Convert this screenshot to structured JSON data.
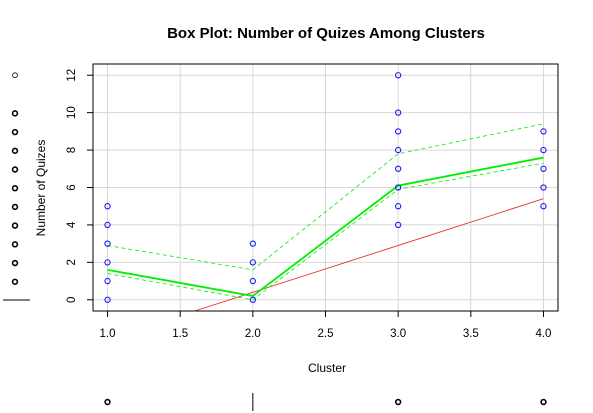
{
  "chart_data": {
    "type": "scatter",
    "title": "Box Plot: Number of Quizes Among Clusters",
    "xlabel": "Cluster",
    "ylabel": "Number of Quizes",
    "xlim": [
      0.9,
      4.1
    ],
    "ylim": [
      -0.6,
      12.6
    ],
    "xticks": [
      "1.0",
      "1.5",
      "2.0",
      "2.5",
      "3.0",
      "3.5",
      "4.0"
    ],
    "yticks": [
      "0",
      "2",
      "4",
      "6",
      "8",
      "10",
      "12"
    ],
    "grid": true,
    "points": [
      {
        "x": 1,
        "y": 0
      },
      {
        "x": 1,
        "y": 1
      },
      {
        "x": 1,
        "y": 2
      },
      {
        "x": 1,
        "y": 3
      },
      {
        "x": 1,
        "y": 4
      },
      {
        "x": 1,
        "y": 5
      },
      {
        "x": 2,
        "y": 0
      },
      {
        "x": 2,
        "y": 1
      },
      {
        "x": 2,
        "y": 2
      },
      {
        "x": 2,
        "y": 3
      },
      {
        "x": 3,
        "y": 4
      },
      {
        "x": 3,
        "y": 5
      },
      {
        "x": 3,
        "y": 6
      },
      {
        "x": 3,
        "y": 7
      },
      {
        "x": 3,
        "y": 8
      },
      {
        "x": 3,
        "y": 9
      },
      {
        "x": 3,
        "y": 10
      },
      {
        "x": 3,
        "y": 12
      },
      {
        "x": 4,
        "y": 5
      },
      {
        "x": 4,
        "y": 6
      },
      {
        "x": 4,
        "y": 7
      },
      {
        "x": 4,
        "y": 8
      },
      {
        "x": 4,
        "y": 9
      }
    ],
    "series": [
      {
        "values": [
          [
            1,
            1.6
          ],
          [
            2,
            0.2
          ],
          [
            3,
            6.1
          ],
          [
            4,
            7.6
          ]
        ],
        "color": "#00ee00",
        "style": "solid",
        "width": 1.8
      },
      {
        "values": [
          [
            1,
            2.9
          ],
          [
            2,
            1.6
          ],
          [
            3,
            7.8
          ],
          [
            4,
            9.4
          ]
        ],
        "color": "#00ee00",
        "style": "dashed",
        "width": 0.8
      },
      {
        "values": [
          [
            1,
            1.4
          ],
          [
            2,
            0.0
          ],
          [
            3,
            5.9
          ],
          [
            4,
            7.3
          ]
        ],
        "color": "#00ee00",
        "style": "dashed",
        "width": 0.8
      },
      {
        "values": [
          [
            1.6,
            -0.6
          ],
          [
            4,
            5.4
          ]
        ],
        "color": "#e83030",
        "style": "solid",
        "width": 0.9
      }
    ],
    "colors": {
      "points": "#1a1aff",
      "grid": "#d8d8d8",
      "axis": "#000000"
    },
    "margin_y_points": [
      0,
      1,
      2,
      3,
      4,
      5,
      6,
      7,
      8,
      9
    ],
    "margin_y_open_point": 12,
    "margin_x_points": [
      1,
      3,
      4
    ]
  }
}
